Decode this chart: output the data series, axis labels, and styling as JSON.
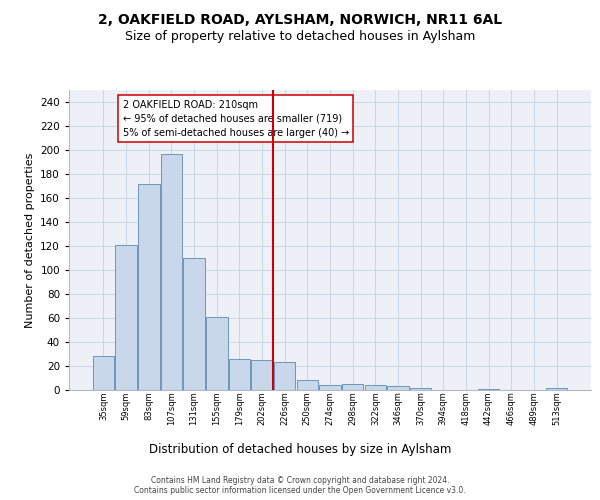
{
  "title": "2, OAKFIELD ROAD, AYLSHAM, NORWICH, NR11 6AL",
  "subtitle": "Size of property relative to detached houses in Aylsham",
  "xlabel": "Distribution of detached houses by size in Aylsham",
  "ylabel": "Number of detached properties",
  "bar_labels": [
    "35sqm",
    "59sqm",
    "83sqm",
    "107sqm",
    "131sqm",
    "155sqm",
    "179sqm",
    "202sqm",
    "226sqm",
    "250sqm",
    "274sqm",
    "298sqm",
    "322sqm",
    "346sqm",
    "370sqm",
    "394sqm",
    "418sqm",
    "442sqm",
    "466sqm",
    "489sqm",
    "513sqm"
  ],
  "bar_heights": [
    28,
    121,
    172,
    197,
    110,
    61,
    26,
    25,
    23,
    8,
    4,
    5,
    4,
    3,
    2,
    0,
    0,
    1,
    0,
    0,
    2
  ],
  "bar_color": "#c8d8ea",
  "bar_edge_color": "#5a8ab5",
  "vline_color": "#cc0000",
  "vline_idx": 7,
  "annotation_text": "2 OAKFIELD ROAD: 210sqm\n← 95% of detached houses are smaller (719)\n5% of semi-detached houses are larger (40) →",
  "annotation_box_edgecolor": "#cc0000",
  "ylim": [
    0,
    250
  ],
  "yticks": [
    0,
    20,
    40,
    60,
    80,
    100,
    120,
    140,
    160,
    180,
    200,
    220,
    240
  ],
  "grid_color": "#cdd5e0",
  "bg_color": "#edf1f7",
  "footer": "Contains HM Land Registry data © Crown copyright and database right 2024.\nContains public sector information licensed under the Open Government Licence v3.0.",
  "title_fs": 10,
  "subtitle_fs": 9,
  "xlabel_fs": 8.5,
  "ylabel_fs": 8,
  "tick_fs": 7.5,
  "xtick_fs": 6,
  "ann_fs": 7,
  "footer_fs": 5.5
}
